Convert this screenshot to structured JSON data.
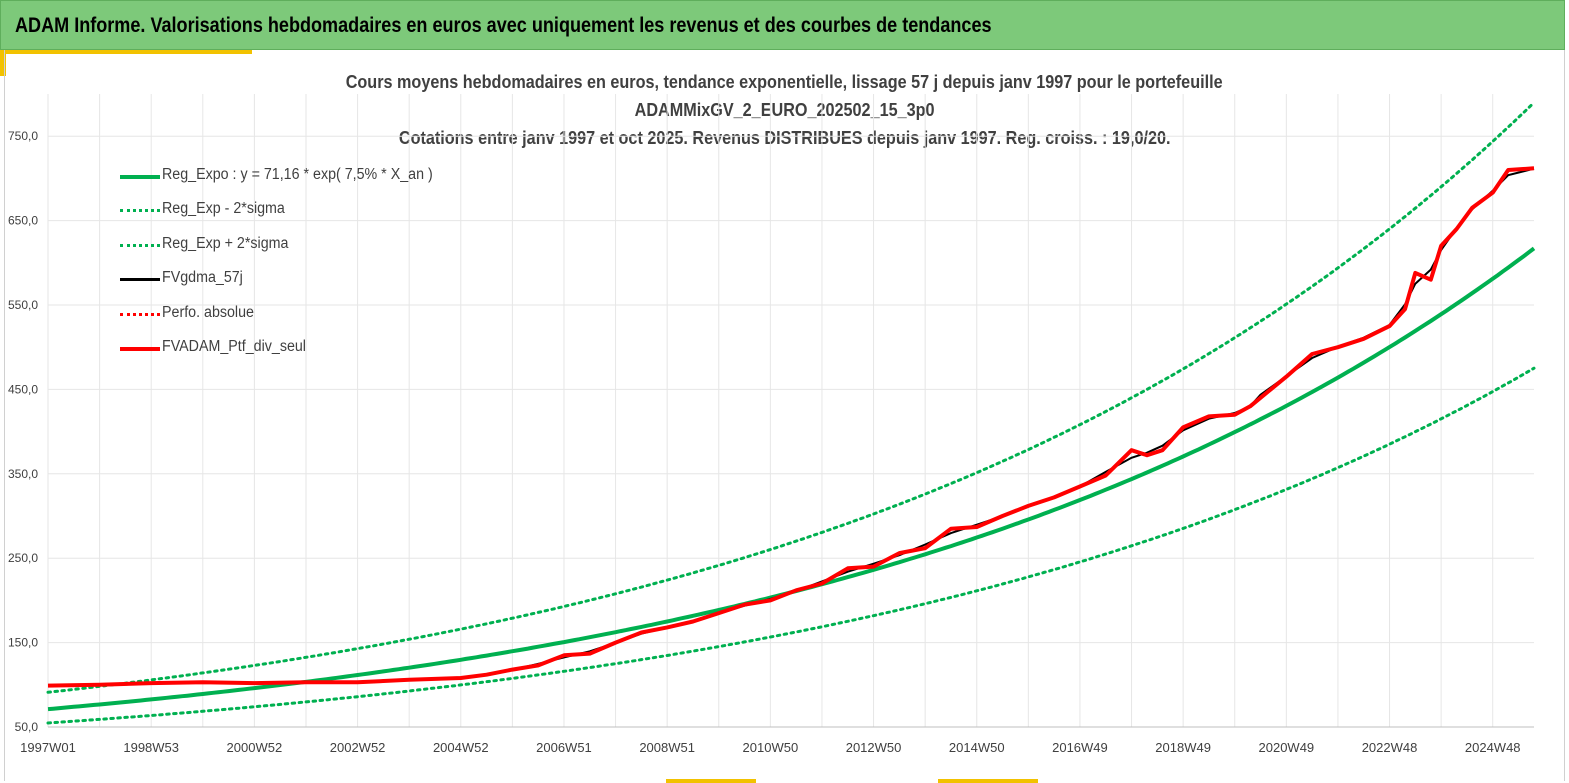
{
  "header": {
    "title": "ADAM Informe. Valorisations hebdomadaires en euros avec uniquement les revenus et des courbes de tendances"
  },
  "colors": {
    "banner": "#7dc97a",
    "accent": "#f2c200",
    "green": "#00b050",
    "red": "#ff0000",
    "black": "#000000",
    "grid": "#e6e6e6",
    "axis_text": "#404040"
  },
  "chart_data": {
    "type": "line",
    "title_lines": [
      "Cours moyens hebdomadaires  en euros, tendance exponentielle, lissage 57 j depuis janv 1997 pour le portefeuille",
      "ADAMMixGV_2_EURO_202502_15_3p0",
      "Cotations  entre janv 1997 et oct 2025. Revenus DISTRIBUES depuis janv 1997. Reg. croiss. : 19,0/20."
    ],
    "x_tick_labels": [
      "1997W01",
      "1998W53",
      "2000W52",
      "2002W52",
      "2004W52",
      "2006W51",
      "2008W51",
      "2010W50",
      "2012W50",
      "2014W50",
      "2016W49",
      "2018W49",
      "2020W49",
      "2022W48",
      "2024W48"
    ],
    "x_tick_years": [
      1997.0,
      1999.0,
      2001.0,
      2003.0,
      2005.0,
      2007.0,
      2009.0,
      2011.0,
      2013.0,
      2015.0,
      2017.0,
      2019.0,
      2021.0,
      2023.0,
      2025.0
    ],
    "x_minor_step_years": 1.0,
    "xlim": [
      1997.0,
      2025.8
    ],
    "y_tick_labels": [
      "50,0",
      "150,0",
      "250,0",
      "350,0",
      "450,0",
      "550,0",
      "650,0",
      "750,0"
    ],
    "y_ticks": [
      50,
      150,
      250,
      350,
      450,
      550,
      650,
      750
    ],
    "ylim": [
      50,
      800
    ],
    "regression": {
      "a": 71.16,
      "rate": 0.075,
      "sigma_factor_upper": 1.28,
      "sigma_factor_lower": 0.77
    },
    "series": [
      {
        "name": "Reg_Expo : y = 71,16 * exp( 7,5% *  X_an )",
        "kind": "reg",
        "color": "#00b050",
        "style": "solid"
      },
      {
        "name": "Reg_Exp - 2*sigma",
        "kind": "reg_low",
        "color": "#00b050",
        "style": "dotted"
      },
      {
        "name": "Reg_Exp + 2*sigma",
        "kind": "reg_high",
        "color": "#00b050",
        "style": "dotted"
      },
      {
        "name": "FVgdma_57j",
        "kind": "smooth",
        "color": "#000000",
        "style": "solid"
      },
      {
        "name": "Perfo. absolue",
        "kind": "perf",
        "color": "#ff0000",
        "style": "dotted"
      },
      {
        "name": "FVADAM_Ptf_div_seul",
        "kind": "data",
        "color": "#ff0000",
        "style": "solid",
        "x": [
          1997.0,
          1998.0,
          1999.0,
          2000.0,
          2001.0,
          2002.0,
          2003.0,
          2004.0,
          2005.0,
          2005.5,
          2006.0,
          2006.5,
          2007.0,
          2007.5,
          2008.0,
          2008.5,
          2009.0,
          2009.5,
          2010.0,
          2010.5,
          2011.0,
          2011.5,
          2012.0,
          2012.5,
          2013.0,
          2013.5,
          2014.0,
          2014.5,
          2015.0,
          2015.5,
          2016.0,
          2016.5,
          2017.0,
          2017.5,
          2018.0,
          2018.3,
          2018.6,
          2019.0,
          2019.5,
          2020.0,
          2020.3,
          2020.5,
          2021.0,
          2021.5,
          2022.0,
          2022.5,
          2023.0,
          2023.3,
          2023.5,
          2023.8,
          2024.0,
          2024.3,
          2024.6,
          2025.0,
          2025.3,
          2025.8
        ],
        "values": [
          99,
          100,
          102,
          103,
          102,
          103,
          103,
          106,
          108,
          112,
          118,
          123,
          135,
          137,
          150,
          162,
          168,
          175,
          185,
          195,
          200,
          212,
          220,
          238,
          240,
          256,
          262,
          285,
          287,
          300,
          312,
          322,
          335,
          348,
          378,
          372,
          378,
          405,
          418,
          420,
          430,
          440,
          465,
          492,
          500,
          510,
          525,
          545,
          588,
          580,
          620,
          640,
          665,
          683,
          710,
          712
        ]
      }
    ],
    "legend_position": "top-left"
  }
}
